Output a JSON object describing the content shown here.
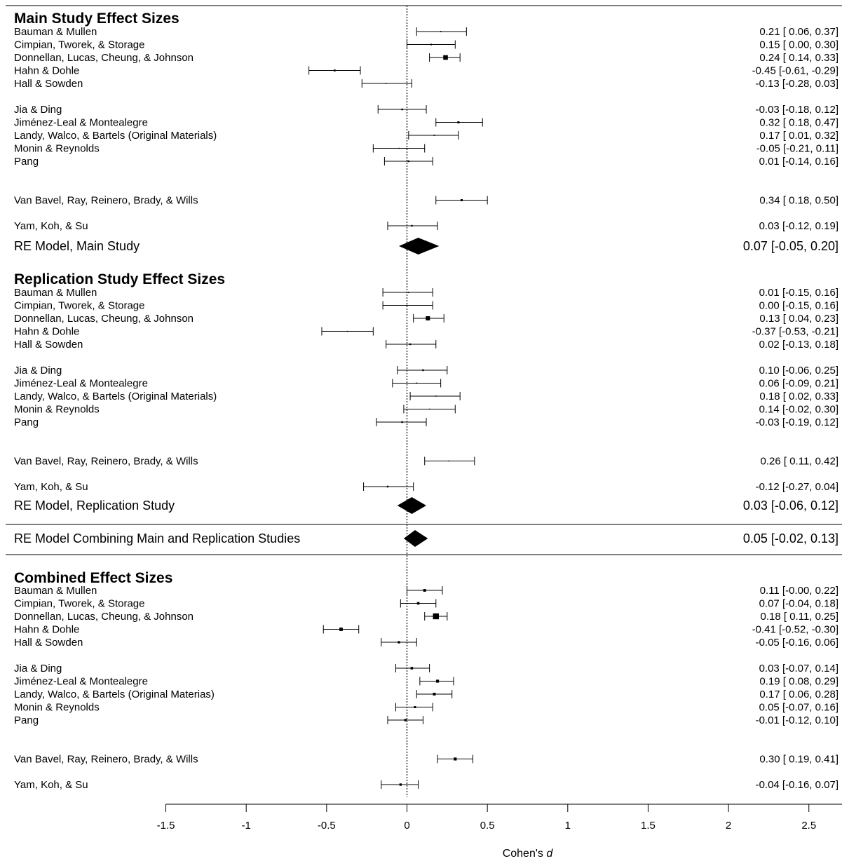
{
  "chart_data": {
    "type": "forest",
    "xlabel_prefix": "Cohen's ",
    "xlabel_italic": "d",
    "xlim": [
      -1.5,
      3
    ],
    "xticks": [
      -1.5,
      -1,
      -0.5,
      0,
      0.5,
      1,
      1.5,
      2,
      2.5,
      3
    ],
    "sections": [
      {
        "title": "Main Study Effect Sizes",
        "studies": [
          {
            "label": "Bauman & Mullen",
            "est": 0.21,
            "lo": 0.06,
            "hi": 0.37,
            "ci": "0.21 [ 0.06,  0.37]",
            "weight": 0.6
          },
          {
            "label": "Cimpian, Tworek, & Storage",
            "est": 0.15,
            "lo": 0.0,
            "hi": 0.3,
            "ci": "0.15 [ 0.00,  0.30]",
            "weight": 0.7
          },
          {
            "label": "Donnellan, Lucas, Cheung, & Johnson",
            "est": 0.24,
            "lo": 0.14,
            "hi": 0.33,
            "ci": "0.24 [ 0.14,  0.33]",
            "weight": 2.2
          },
          {
            "label": "Hahn & Dohle",
            "est": -0.45,
            "lo": -0.61,
            "hi": -0.29,
            "ci": "-0.45 [-0.61, -0.29]",
            "weight": 0.9
          },
          {
            "label": "Hall & Sowden",
            "est": -0.13,
            "lo": -0.28,
            "hi": 0.03,
            "ci": "-0.13 [-0.28,  0.03]",
            "weight": 0.5
          },
          {
            "label": "Jia & Ding",
            "est": -0.03,
            "lo": -0.18,
            "hi": 0.12,
            "ci": "-0.03 [-0.18,  0.12]",
            "weight": 0.8
          },
          {
            "label": "Jiménez-Leal & Montealegre",
            "est": 0.32,
            "lo": 0.18,
            "hi": 0.47,
            "ci": "0.32 [ 0.18,  0.47]",
            "weight": 1.0
          },
          {
            "label": "Landy, Walco, & Bartels (Original Materials)",
            "est": 0.17,
            "lo": 0.01,
            "hi": 0.32,
            "ci": "0.17 [ 0.01,  0.32]",
            "weight": 0.6
          },
          {
            "label": "Monin & Reynolds",
            "est": -0.05,
            "lo": -0.21,
            "hi": 0.11,
            "ci": "-0.05 [-0.21,  0.11]",
            "weight": 0.5
          },
          {
            "label": "Pang",
            "est": 0.01,
            "lo": -0.14,
            "hi": 0.16,
            "ci": "0.01 [-0.14,  0.16]",
            "weight": 0.8
          },
          {
            "label": "Van Bavel, Ray, Reinero, Brady, & Wills",
            "est": 0.34,
            "lo": 0.18,
            "hi": 0.5,
            "ci": "0.34 [ 0.18,  0.50]",
            "weight": 1.0
          },
          {
            "label": "Yam, Koh, & Su",
            "est": 0.03,
            "lo": -0.12,
            "hi": 0.19,
            "ci": "0.03 [-0.12,  0.19]",
            "weight": 0.8
          }
        ],
        "model": {
          "label": "RE Model, Main Study",
          "est": 0.07,
          "lo": -0.05,
          "hi": 0.2,
          "ci": "0.07 [-0.05, 0.20]"
        }
      },
      {
        "title": "Replication Study Effect Sizes",
        "studies": [
          {
            "label": "Bauman & Mullen",
            "est": 0.01,
            "lo": -0.15,
            "hi": 0.16,
            "ci": "0.01 [-0.15,  0.16]",
            "weight": 0.6
          },
          {
            "label": "Cimpian, Tworek, & Storage",
            "est": 0.0,
            "lo": -0.15,
            "hi": 0.16,
            "ci": "0.00 [-0.15,  0.16]",
            "weight": 0.5
          },
          {
            "label": "Donnellan, Lucas, Cheung, & Johnson",
            "est": 0.13,
            "lo": 0.04,
            "hi": 0.23,
            "ci": "0.13 [ 0.04,  0.23]",
            "weight": 2.0
          },
          {
            "label": "Hahn & Dohle",
            "est": -0.37,
            "lo": -0.53,
            "hi": -0.21,
            "ci": "-0.37 [-0.53, -0.21]",
            "weight": 0.5
          },
          {
            "label": "Hall & Sowden",
            "est": 0.02,
            "lo": -0.13,
            "hi": 0.18,
            "ci": "0.02 [-0.13,  0.18]",
            "weight": 0.8
          },
          {
            "label": "Jia & Ding",
            "est": 0.1,
            "lo": -0.06,
            "hi": 0.25,
            "ci": "0.10 [-0.06,  0.25]",
            "weight": 0.8
          },
          {
            "label": "Jiménez-Leal & Montealegre",
            "est": 0.06,
            "lo": -0.09,
            "hi": 0.21,
            "ci": "0.06 [-0.09,  0.21]",
            "weight": 0.6
          },
          {
            "label": "Landy, Walco, & Bartels (Original Materials)",
            "est": 0.18,
            "lo": 0.02,
            "hi": 0.33,
            "ci": "0.18 [ 0.02,  0.33]",
            "weight": 0.5
          },
          {
            "label": "Monin & Reynolds",
            "est": 0.14,
            "lo": -0.02,
            "hi": 0.3,
            "ci": "0.14 [-0.02,  0.30]",
            "weight": 0.5
          },
          {
            "label": "Pang",
            "est": -0.03,
            "lo": -0.19,
            "hi": 0.12,
            "ci": "-0.03 [-0.19,  0.12]",
            "weight": 0.8
          },
          {
            "label": "Van Bavel, Ray, Reinero, Brady, & Wills",
            "est": 0.26,
            "lo": 0.11,
            "hi": 0.42,
            "ci": "0.26 [ 0.11,  0.42]",
            "weight": 0.5
          },
          {
            "label": "Yam, Koh, & Su",
            "est": -0.12,
            "lo": -0.27,
            "hi": 0.04,
            "ci": "-0.12 [-0.27,  0.04]",
            "weight": 0.8
          }
        ],
        "model": {
          "label": "RE Model, Replication Study",
          "est": 0.03,
          "lo": -0.06,
          "hi": 0.12,
          "ci": "0.03 [-0.06, 0.12]"
        }
      }
    ],
    "combined_model": {
      "label": "RE Model Combining Main and Replication Studies",
      "est": 0.05,
      "lo": -0.02,
      "hi": 0.13,
      "ci": "0.05 [-0.02, 0.13]"
    },
    "combined_section": {
      "title": "Combined Effect Sizes",
      "studies": [
        {
          "label": "Bauman & Mullen",
          "est": 0.11,
          "lo": -0.0,
          "hi": 0.22,
          "ci": "0.11 [-0.00,  0.22]",
          "weight": 1.3
        },
        {
          "label": "Cimpian, Tworek, & Storage",
          "est": 0.07,
          "lo": -0.04,
          "hi": 0.18,
          "ci": "0.07 [-0.04,  0.18]",
          "weight": 1.2
        },
        {
          "label": "Donnellan, Lucas, Cheung, & Johnson",
          "est": 0.18,
          "lo": 0.11,
          "hi": 0.25,
          "ci": "0.18 [ 0.11,  0.25]",
          "weight": 2.8
        },
        {
          "label": "Hahn & Dohle",
          "est": -0.41,
          "lo": -0.52,
          "hi": -0.3,
          "ci": "-0.41 [-0.52, -0.30]",
          "weight": 1.6
        },
        {
          "label": "Hall & Sowden",
          "est": -0.05,
          "lo": -0.16,
          "hi": 0.06,
          "ci": "-0.05 [-0.16,  0.06]",
          "weight": 1.1
        },
        {
          "label": "Jia & Ding",
          "est": 0.03,
          "lo": -0.07,
          "hi": 0.14,
          "ci": "0.03 [-0.07,  0.14]",
          "weight": 1.2
        },
        {
          "label": "Jiménez-Leal & Montealegre",
          "est": 0.19,
          "lo": 0.08,
          "hi": 0.29,
          "ci": "0.19 [ 0.08,  0.29]",
          "weight": 1.4
        },
        {
          "label": "Landy, Walco, & Bartels (Original Materias)",
          "est": 0.17,
          "lo": 0.06,
          "hi": 0.28,
          "ci": "0.17 [ 0.06,  0.28]",
          "weight": 1.3
        },
        {
          "label": "Monin & Reynolds",
          "est": 0.05,
          "lo": -0.07,
          "hi": 0.16,
          "ci": "0.05 [-0.07,  0.16]",
          "weight": 1.0
        },
        {
          "label": "Pang",
          "est": -0.01,
          "lo": -0.12,
          "hi": 0.1,
          "ci": "-0.01 [-0.12,  0.10]",
          "weight": 1.1
        },
        {
          "label": "Van Bavel, Ray, Reinero, Brady, & Wills",
          "est": 0.3,
          "lo": 0.19,
          "hi": 0.41,
          "ci": "0.30 [ 0.19,  0.41]",
          "weight": 1.4
        },
        {
          "label": "Yam, Koh, & Su",
          "est": -0.04,
          "lo": -0.16,
          "hi": 0.07,
          "ci": "-0.04 [-0.16,  0.07]",
          "weight": 1.1
        }
      ]
    }
  }
}
